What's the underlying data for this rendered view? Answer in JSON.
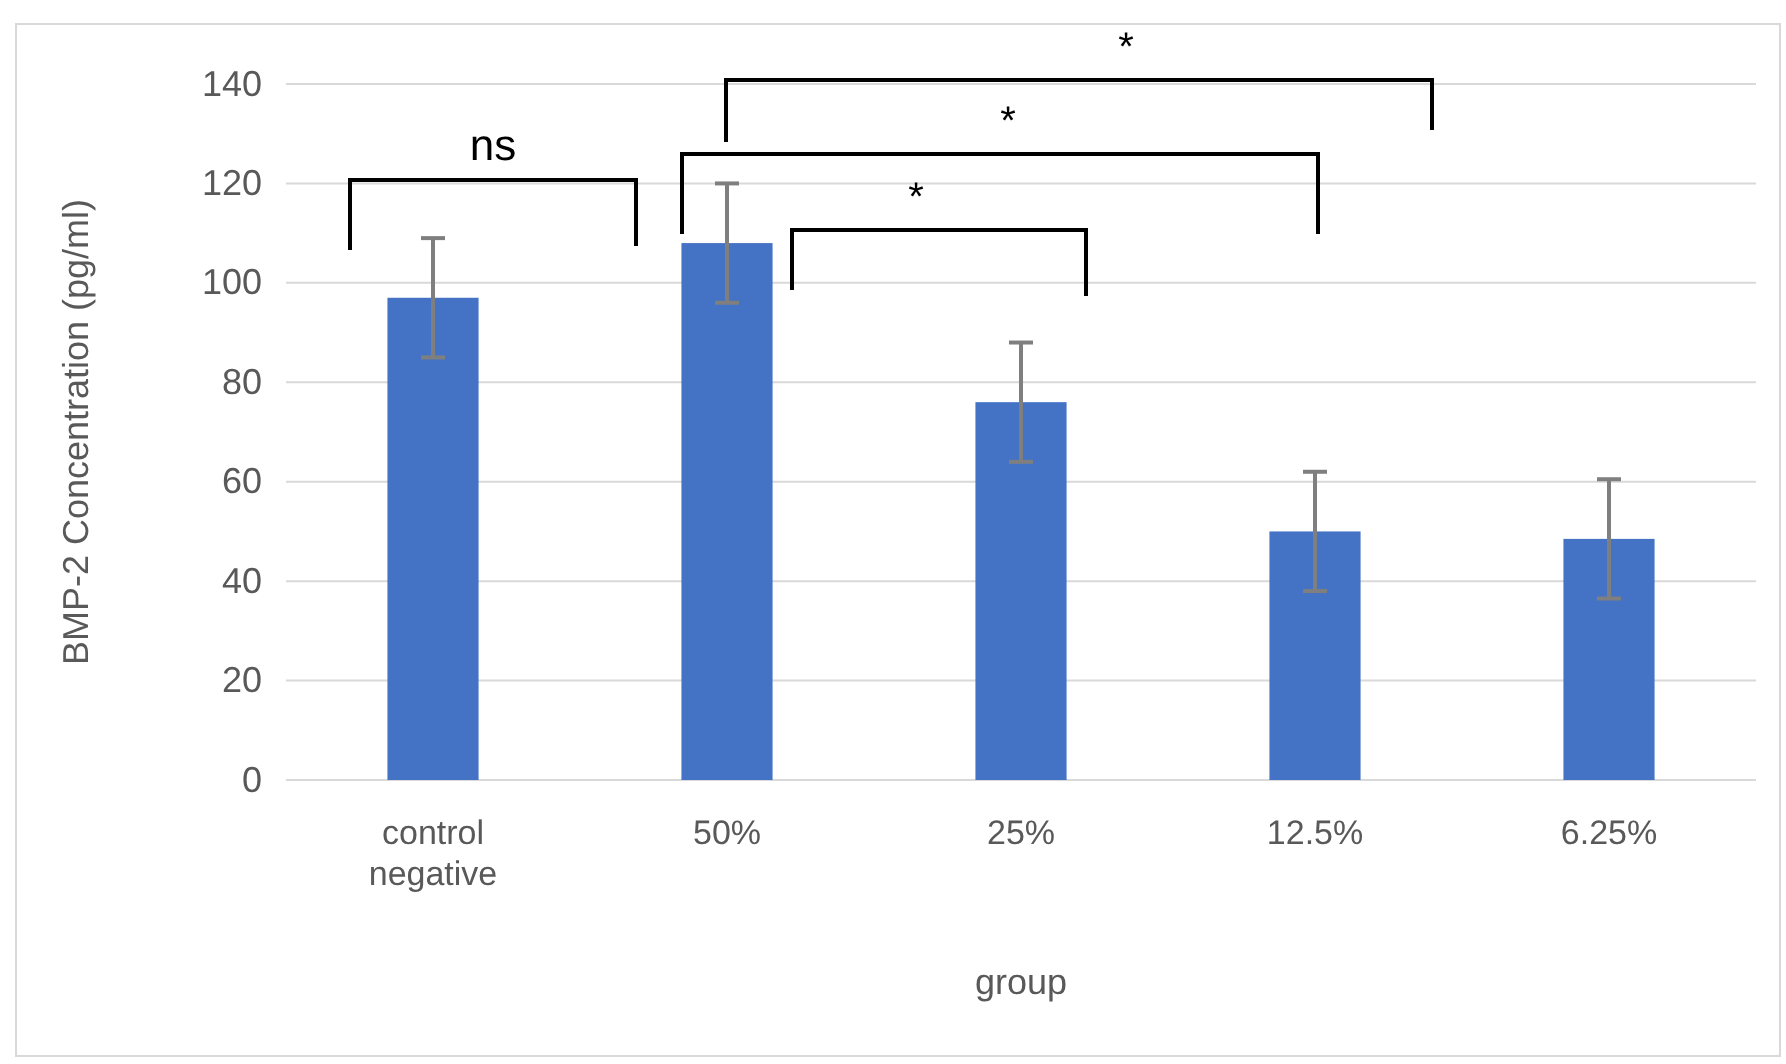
{
  "chart_data": {
    "type": "bar",
    "ylabel": "BMP-2 Concentration (pg/ml)",
    "xlabel": "group",
    "categories": [
      "control negative",
      "50%",
      "25%",
      "12.5%",
      "6.25%"
    ],
    "values": [
      97,
      108,
      76,
      50,
      48.5
    ],
    "errors": [
      12,
      12,
      12,
      12,
      12
    ],
    "color": "#4472c4",
    "ylim": [
      0,
      140
    ],
    "yticks": [
      0,
      20,
      40,
      60,
      80,
      100,
      120,
      140
    ],
    "grid": "y",
    "annotations": [
      "ns",
      "*",
      "*",
      "*"
    ]
  }
}
